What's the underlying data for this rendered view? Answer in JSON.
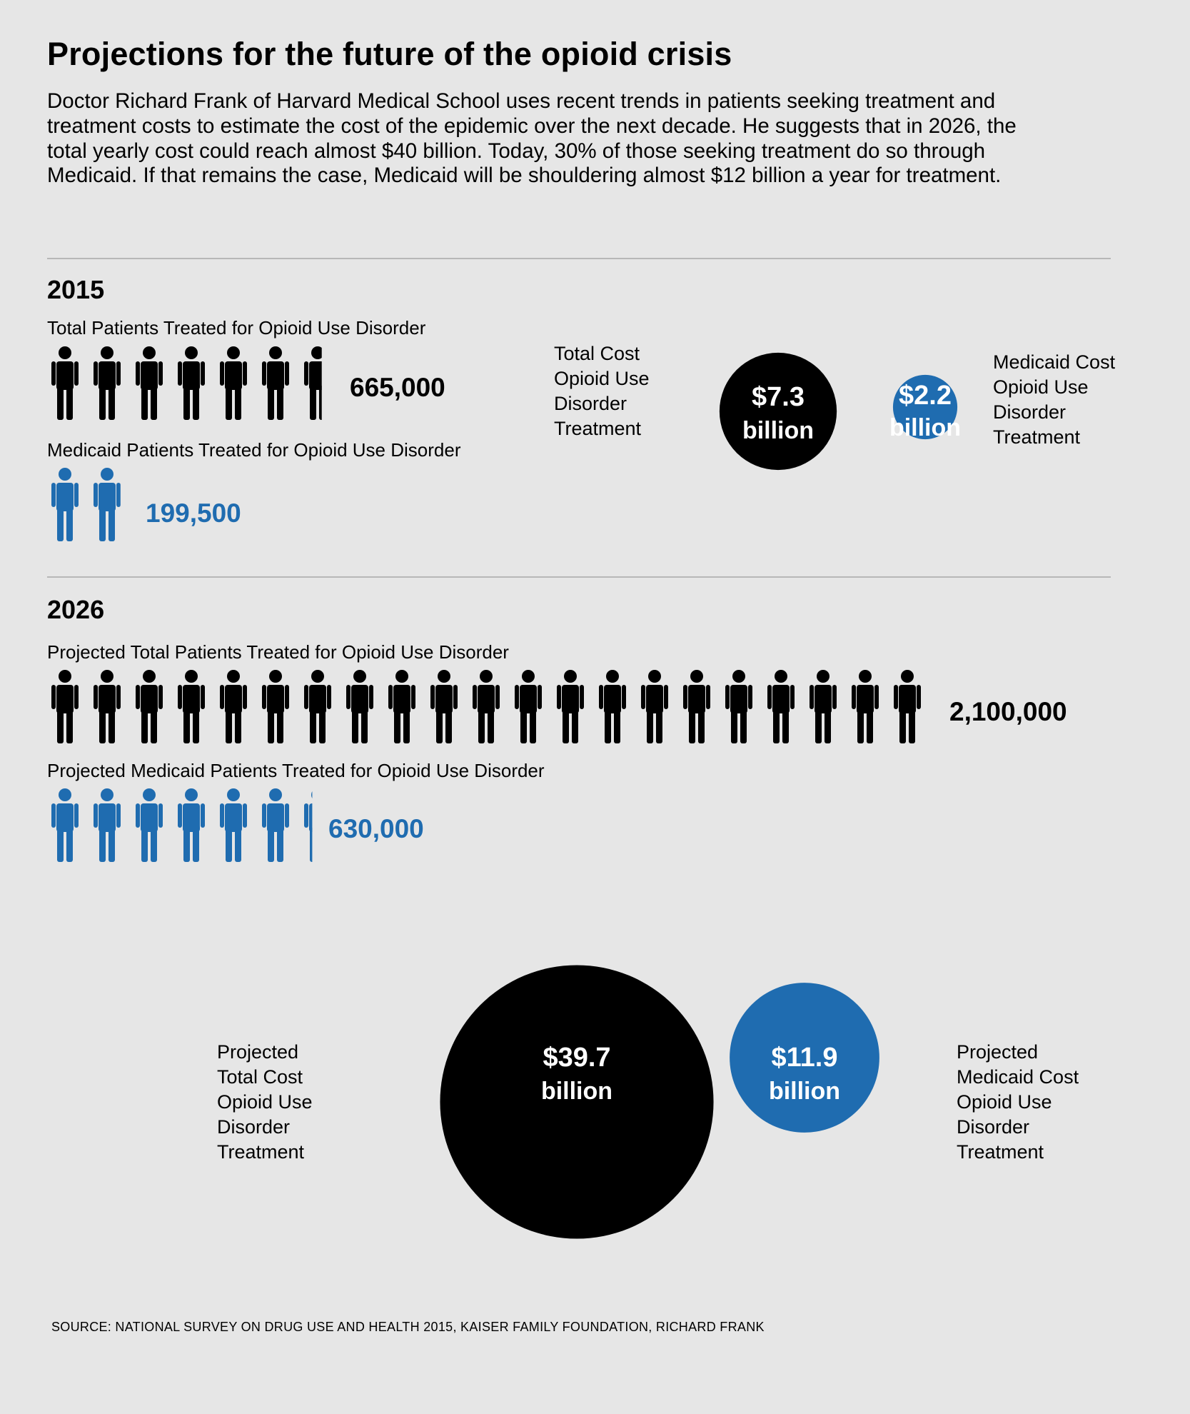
{
  "title": "Projections for the future of the opioid crisis",
  "intro": "Doctor Richard Frank of Harvard Medical School uses recent trends in patients seeking treatment and treatment costs to estimate the cost of the epidemic over the next decade. He suggests that in 2026, the total yearly cost could reach almost $40 billion. Today, 30% of those seeking treatment do so through Medicaid. If that remains the case, Medicaid will be shouldering almost $12 billion a year for treatment.",
  "colors": {
    "total": "#000000",
    "medicaid": "#1f6cb0",
    "background": "#e6e6e6"
  },
  "y2015": {
    "year": "2015",
    "total_patients_label": "Total Patients Treated for Opioid Use Disorder",
    "total_patients": "665,000",
    "medicaid_patients_label": "Medicaid Patients Treated for Opioid Use Disorder",
    "medicaid_patients": "199,500",
    "total_cost_label": [
      "Total Cost",
      "Opioid Use",
      "Disorder",
      "Treatment"
    ],
    "total_cost_value": "$7.3",
    "medicaid_cost_label": [
      "Medicaid Cost",
      "Opioid Use",
      "Disorder",
      "Treatment"
    ],
    "medicaid_cost_value": "$2.2",
    "unit": "billion"
  },
  "y2026": {
    "year": "2026",
    "total_patients_label": "Projected Total Patients Treated for Opioid Use Disorder",
    "total_patients": "2,100,000",
    "medicaid_patients_label": "Projected Medicaid Patients Treated for Opioid Use Disorder",
    "medicaid_patients": "630,000",
    "total_cost_label": [
      "Projected",
      "Total Cost",
      "Opioid Use",
      "Disorder",
      "Treatment"
    ],
    "total_cost_value": "$39.7",
    "medicaid_cost_label": [
      "Projected",
      "Medicaid Cost",
      "Opioid Use",
      "Disorder",
      "Treatment"
    ],
    "medicaid_cost_value": "$11.9",
    "unit": "billion"
  },
  "source": "SOURCE: NATIONAL SURVEY ON DRUG USE AND HEALTH 2015, KAISER FAMILY FOUNDATION, RICHARD FRANK",
  "chart_data": {
    "type": "pictogram+bubble",
    "patients_per_icon": 100000,
    "patients": {
      "categories": [
        "2015",
        "2026"
      ],
      "series": [
        {
          "name": "Total Patients Treated for Opioid Use Disorder",
          "values": [
            665000,
            2100000
          ]
        },
        {
          "name": "Medicaid Patients Treated for Opioid Use Disorder",
          "values": [
            199500,
            630000
          ]
        }
      ]
    },
    "cost_billions": {
      "categories": [
        "2015",
        "2026"
      ],
      "series": [
        {
          "name": "Total Cost Opioid Use Disorder Treatment",
          "values": [
            7.3,
            39.7
          ]
        },
        {
          "name": "Medicaid Cost Opioid Use Disorder Treatment",
          "values": [
            2.2,
            11.9
          ]
        }
      ]
    }
  }
}
